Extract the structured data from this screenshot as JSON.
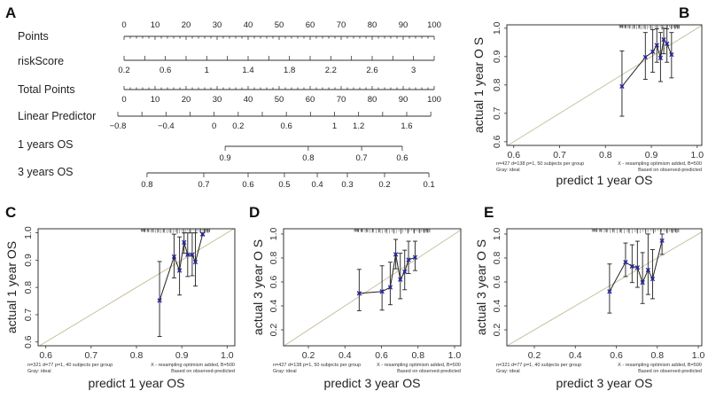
{
  "panels": [
    "A",
    "B",
    "C",
    "D",
    "E"
  ],
  "chart_data": [
    {
      "type": "nomogram",
      "panel": "A",
      "points_scale": [
        0,
        100
      ],
      "rows": [
        {
          "label": "Points",
          "kind": "linear",
          "range": [
            0,
            100
          ],
          "points_range": [
            0,
            100
          ],
          "minor_step": 2,
          "label_values": [
            0,
            10,
            20,
            30,
            40,
            50,
            60,
            70,
            80,
            90,
            100
          ],
          "labels": [
            "0",
            "10",
            "20",
            "30",
            "40",
            "50",
            "60",
            "70",
            "80",
            "90",
            "100"
          ],
          "labels_above": true
        },
        {
          "label": "riskScore",
          "kind": "linear",
          "range": [
            0.2,
            3.2
          ],
          "points_range": [
            0,
            100
          ],
          "minor_step": 0.2,
          "label_values": [
            0.2,
            0.6,
            1,
            1.4,
            1.8,
            2.2,
            2.6,
            3
          ],
          "labels": [
            "0.2",
            "0.6",
            "1",
            "1.4",
            "1.8",
            "2.2",
            "2.6",
            "3"
          ]
        },
        {
          "label": "Total Points",
          "kind": "linear",
          "range": [
            0,
            100
          ],
          "points_range": [
            0,
            100
          ],
          "minor_step": 2,
          "label_values": [
            0,
            10,
            20,
            30,
            40,
            50,
            60,
            70,
            80,
            90,
            100
          ],
          "labels": [
            "0",
            "10",
            "20",
            "30",
            "40",
            "50",
            "60",
            "70",
            "80",
            "90",
            "100"
          ]
        },
        {
          "label": "Linear Predictor",
          "kind": "linear",
          "range": [
            -0.8,
            1.8
          ],
          "points_range": [
            -2,
            98.9
          ],
          "minor_step": 0.2,
          "label_values": [
            -0.8,
            -0.4,
            0,
            0.2,
            0.6,
            1,
            1.2,
            1.6
          ],
          "labels": [
            "−0.8",
            "−0.4",
            "0",
            "0.2",
            "0.6",
            "1",
            "1.2",
            "1.6"
          ]
        },
        {
          "label": "1 years OS",
          "kind": "ticks",
          "tick_points": [
            32.6,
            59.4,
            76.6,
            89.7
          ],
          "labels": [
            "0.9",
            "0.8",
            "0.7",
            "0.6"
          ]
        },
        {
          "label": "3 years OS",
          "kind": "ticks",
          "tick_points": [
            7.4,
            25.7,
            40,
            51.7,
            62.3,
            72,
            84,
            98.3
          ],
          "labels": [
            "0.8",
            "0.7",
            "0.6",
            "0.5",
            "0.4",
            "0.3",
            "0.2",
            "0.1"
          ]
        }
      ]
    },
    {
      "type": "scatter",
      "subtype": "calibration",
      "panel": "B",
      "xlabel": "predict 1 year OS",
      "ylabel": "actual 1 year O S",
      "xlim": [
        0.585,
        1.01
      ],
      "ylim": [
        0.587,
        1.012
      ],
      "xticks": [
        0.6,
        0.7,
        0.8,
        0.9,
        1.0
      ],
      "xtick_labels": [
        "0.6",
        "0.7",
        "0.8",
        "0.9",
        "1.0"
      ],
      "yticks": [
        0.6,
        0.7,
        0.8,
        0.9,
        1.0
      ],
      "ytick_labels": [
        "0.6",
        "0.7",
        "0.8",
        "0.9",
        "1.0"
      ],
      "rug_range": [
        0.83,
        0.96
      ],
      "points": [
        {
          "x": 0.836,
          "y": 0.795,
          "lo": 0.69,
          "hi": 0.92
        },
        {
          "x": 0.887,
          "y": 0.898,
          "lo": 0.82,
          "hi": 0.985
        },
        {
          "x": 0.903,
          "y": 0.917,
          "lo": 0.845,
          "hi": 0.995
        },
        {
          "x": 0.912,
          "y": 0.94,
          "lo": 0.88,
          "hi": 0.998
        },
        {
          "x": 0.92,
          "y": 0.895,
          "lo": 0.812,
          "hi": 0.985
        },
        {
          "x": 0.927,
          "y": 0.96,
          "lo": 0.91,
          "hi": 1.0
        },
        {
          "x": 0.934,
          "y": 0.945,
          "lo": 0.88,
          "hi": 0.998
        },
        {
          "x": 0.944,
          "y": 0.907,
          "lo": 0.825,
          "hi": 0.985
        }
      ],
      "footer": {
        "left1": "n=427 d=138 p=1, 50 subjects per group",
        "left2": "Gray: ideal",
        "right1": "X - resampling optimism added, B=500",
        "right2": "Based on observed-predicted"
      }
    },
    {
      "type": "scatter",
      "subtype": "calibration",
      "panel": "C",
      "xlabel": "predict 1 year OS",
      "ylabel": "actual 1 year OS",
      "xlim": [
        0.583,
        1.017
      ],
      "ylim": [
        0.586,
        1.015
      ],
      "xticks": [
        0.6,
        0.7,
        0.8,
        0.9,
        1.0
      ],
      "xtick_labels": [
        "0.6",
        "0.7",
        "0.8",
        "0.9",
        "1.0"
      ],
      "yticks": [
        0.6,
        0.7,
        0.8,
        0.9,
        1.0
      ],
      "ytick_labels": [
        "0.6",
        "0.7",
        "0.8",
        "0.9",
        "1.0"
      ],
      "rug_range": [
        0.81,
        0.96
      ],
      "points": [
        {
          "x": 0.851,
          "y": 0.752,
          "lo": 0.62,
          "hi": 0.895
        },
        {
          "x": 0.883,
          "y": 0.913,
          "lo": 0.835,
          "hi": 0.995
        },
        {
          "x": 0.895,
          "y": 0.862,
          "lo": 0.772,
          "hi": 0.985
        },
        {
          "x": 0.905,
          "y": 0.965,
          "lo": 0.925,
          "hi": 1.0
        },
        {
          "x": 0.913,
          "y": 0.92,
          "lo": 0.84,
          "hi": 1.0
        },
        {
          "x": 0.923,
          "y": 0.92,
          "lo": 0.843,
          "hi": 1.0
        },
        {
          "x": 0.93,
          "y": 0.893,
          "lo": 0.805,
          "hi": 1.0
        },
        {
          "x": 0.946,
          "y": 0.995,
          "lo": 0.99,
          "hi": 1.0
        }
      ],
      "footer": {
        "left1": "n=321 d=77 p=1, 40 subjects per group",
        "left2": "Gray: ideal",
        "right1": "X - resampling optimism added, B=500",
        "right2": "Based on observed-predicted"
      }
    },
    {
      "type": "scatter",
      "subtype": "calibration",
      "panel": "D",
      "xlabel": "predict 3 year OS",
      "ylabel": "actual 3 year O S",
      "xlim": [
        0.064,
        1.034
      ],
      "ylim": [
        0.067,
        1.044
      ],
      "xticks": [
        0.2,
        0.4,
        0.6,
        0.8,
        1.0
      ],
      "xtick_labels": [
        "0.2",
        "0.4",
        "0.6",
        "0.8",
        "1.0"
      ],
      "yticks": [
        0.2,
        0.4,
        0.6,
        0.8,
        1.0
      ],
      "ytick_labels": [
        "0.2",
        "0.4",
        "0.6",
        "0.8",
        "1.0"
      ],
      "rug_range": [
        0.45,
        0.86
      ],
      "points": [
        {
          "x": 0.478,
          "y": 0.505,
          "lo": 0.36,
          "hi": 0.705
        },
        {
          "x": 0.603,
          "y": 0.52,
          "lo": 0.365,
          "hi": 0.735
        },
        {
          "x": 0.648,
          "y": 0.555,
          "lo": 0.41,
          "hi": 0.765
        },
        {
          "x": 0.678,
          "y": 0.83,
          "lo": 0.71,
          "hi": 0.955
        },
        {
          "x": 0.703,
          "y": 0.62,
          "lo": 0.46,
          "hi": 0.84
        },
        {
          "x": 0.727,
          "y": 0.685,
          "lo": 0.535,
          "hi": 0.865
        },
        {
          "x": 0.748,
          "y": 0.785,
          "lo": 0.67,
          "hi": 0.94
        },
        {
          "x": 0.784,
          "y": 0.805,
          "lo": 0.695,
          "hi": 0.94
        }
      ],
      "footer": {
        "left1": "n=427 d=138 p=1, 50 subjects per group",
        "left2": "Gray: ideal",
        "right1": "X - resampling optimism added, B=500",
        "right2": "Based on observed-predicted"
      }
    },
    {
      "type": "scatter",
      "subtype": "calibration",
      "panel": "E",
      "xlabel": "predict 3 year OS",
      "ylabel": "actual 3 year O S",
      "xlim": [
        0.066,
        1.017
      ],
      "ylim": [
        0.067,
        1.044
      ],
      "xticks": [
        0.2,
        0.4,
        0.6,
        0.8,
        1.0
      ],
      "xtick_labels": [
        "0.2",
        "0.4",
        "0.6",
        "0.8",
        "1.0"
      ],
      "yticks": [
        0.2,
        0.4,
        0.6,
        0.8,
        1.0
      ],
      "ytick_labels": [
        "0.2",
        "0.4",
        "0.6",
        "0.8",
        "1.0"
      ],
      "rug_range": [
        0.48,
        0.9
      ],
      "points": [
        {
          "x": 0.567,
          "y": 0.52,
          "lo": 0.34,
          "hi": 0.75
        },
        {
          "x": 0.645,
          "y": 0.765,
          "lo": 0.645,
          "hi": 0.925
        },
        {
          "x": 0.677,
          "y": 0.73,
          "lo": 0.595,
          "hi": 0.91
        },
        {
          "x": 0.703,
          "y": 0.72,
          "lo": 0.555,
          "hi": 0.94
        },
        {
          "x": 0.728,
          "y": 0.595,
          "lo": 0.42,
          "hi": 0.845
        },
        {
          "x": 0.755,
          "y": 0.7,
          "lo": 0.495,
          "hi": 1.0
        },
        {
          "x": 0.777,
          "y": 0.625,
          "lo": 0.46,
          "hi": 0.87
        },
        {
          "x": 0.823,
          "y": 0.945,
          "lo": 0.83,
          "hi": 1.0
        }
      ],
      "footer": {
        "left1": "n=321 d=77 p=1, 40 subjects per group",
        "left2": "Gray: ideal",
        "right1": "X - resampling optimism added, B=500",
        "right2": "Based on observed-predicted"
      }
    }
  ],
  "colors": {
    "ideal_line": "#c8c0a0",
    "marker": "#2a2a9a",
    "line": "#222222",
    "errorbar": "#333333"
  }
}
